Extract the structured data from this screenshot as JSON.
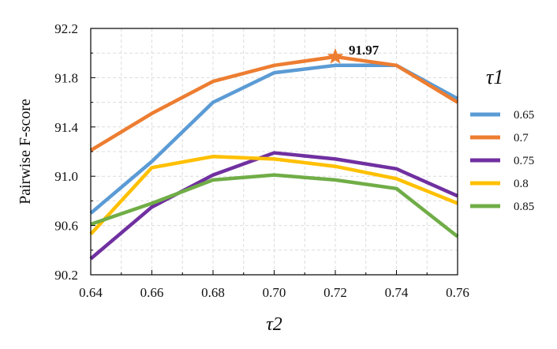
{
  "chart_data": {
    "type": "line",
    "xlabel": "τ2",
    "ylabel": "Pairwise F-score",
    "legend_title": "τ1",
    "legend_position": "right",
    "grid": true,
    "xlim": [
      0.64,
      0.76
    ],
    "ylim": [
      90.2,
      92.2
    ],
    "x": [
      0.64,
      0.66,
      0.68,
      0.7,
      0.72,
      0.74,
      0.76
    ],
    "x_tick_labels": [
      "0.64",
      "0.66",
      "0.68",
      "0.70",
      "0.72",
      "0.74",
      "0.76"
    ],
    "y_ticks": [
      90.2,
      90.6,
      91.0,
      91.4,
      91.8,
      92.2
    ],
    "y_tick_labels": [
      "90.2",
      "90.6",
      "91.0",
      "91.4",
      "91.8",
      "92.2"
    ],
    "series": [
      {
        "name": "0.65",
        "color": "#5b9bd5",
        "values": [
          90.7,
          91.12,
          91.6,
          91.84,
          91.9,
          91.9,
          91.63
        ]
      },
      {
        "name": "0.7",
        "color": "#ed7d31",
        "values": [
          91.21,
          91.51,
          91.77,
          91.9,
          91.97,
          91.9,
          91.6
        ]
      },
      {
        "name": "0.75",
        "color": "#7030a0",
        "values": [
          90.33,
          90.75,
          91.01,
          91.19,
          91.14,
          91.06,
          90.84
        ]
      },
      {
        "name": "0.8",
        "color": "#ffc000",
        "values": [
          90.53,
          91.07,
          91.16,
          91.14,
          91.08,
          90.98,
          90.78
        ]
      },
      {
        "name": "0.85",
        "color": "#70ad47",
        "values": [
          90.61,
          90.78,
          90.97,
          91.01,
          90.97,
          90.9,
          90.51
        ]
      }
    ],
    "annotation": {
      "text": "91.97",
      "x": 0.72,
      "y": 91.97,
      "marker": "star",
      "color": "#ed7d31"
    }
  }
}
